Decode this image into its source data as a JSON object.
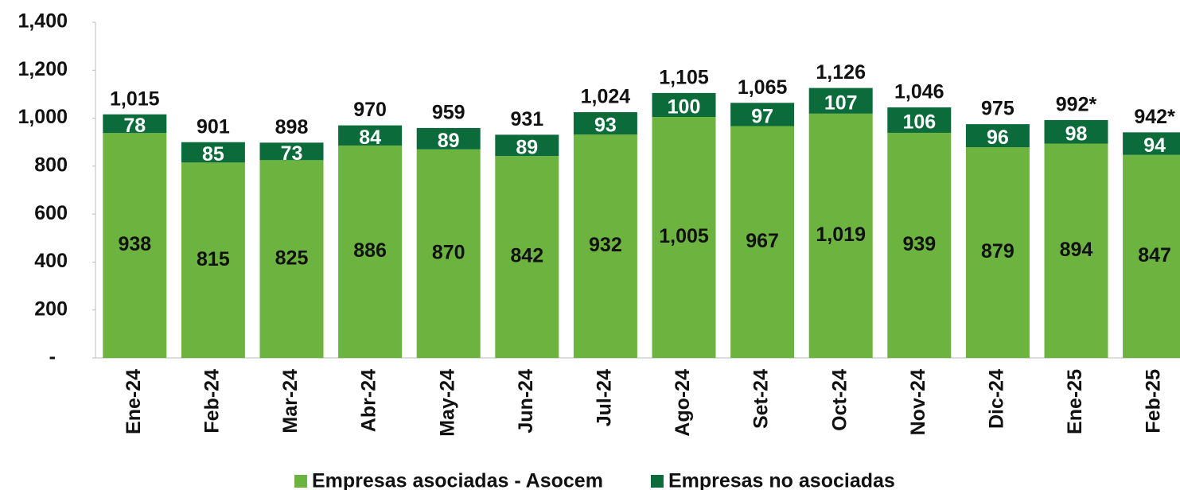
{
  "chart_data": {
    "type": "stacked_bar",
    "categories": [
      "Ene-24",
      "Feb-24",
      "Mar-24",
      "Abr-24",
      "May-24",
      "Jun-24",
      "Jul-24",
      "Ago-24",
      "Set-24",
      "Oct-24",
      "Nov-24",
      "Dic-24",
      "Ene-25",
      "Feb-25"
    ],
    "series": [
      {
        "name": "Empresas asociadas - Asocem",
        "color": "#6db33f",
        "values": [
          938,
          815,
          825,
          886,
          870,
          842,
          932,
          1005,
          967,
          1019,
          939,
          879,
          894,
          847
        ],
        "value_labels": [
          "938",
          "815",
          "825",
          "886",
          "870",
          "842",
          "932",
          "1,005",
          "967",
          "1,019",
          "939",
          "879",
          "894",
          "847"
        ]
      },
      {
        "name": "Empresas no asociadas",
        "color": "#0b6b3a",
        "values": [
          78,
          85,
          73,
          84,
          89,
          89,
          93,
          100,
          97,
          107,
          106,
          96,
          98,
          94
        ]
      }
    ],
    "total_labels": [
      "1,015",
      "901",
      "898",
      "970",
      "959",
      "931",
      "1,024",
      "1,105",
      "1,065",
      "1,126",
      "1,046",
      "975",
      "992*",
      "942*"
    ],
    "ylim": [
      0,
      1400
    ],
    "yticks": [
      {
        "value": 0,
        "label": "-"
      },
      200,
      400,
      600,
      800,
      {
        "value": 1000,
        "label": "1,000"
      },
      {
        "value": 1200,
        "label": "1,200"
      },
      {
        "value": 1400,
        "label": "1,400"
      }
    ],
    "legend": "bottom"
  }
}
